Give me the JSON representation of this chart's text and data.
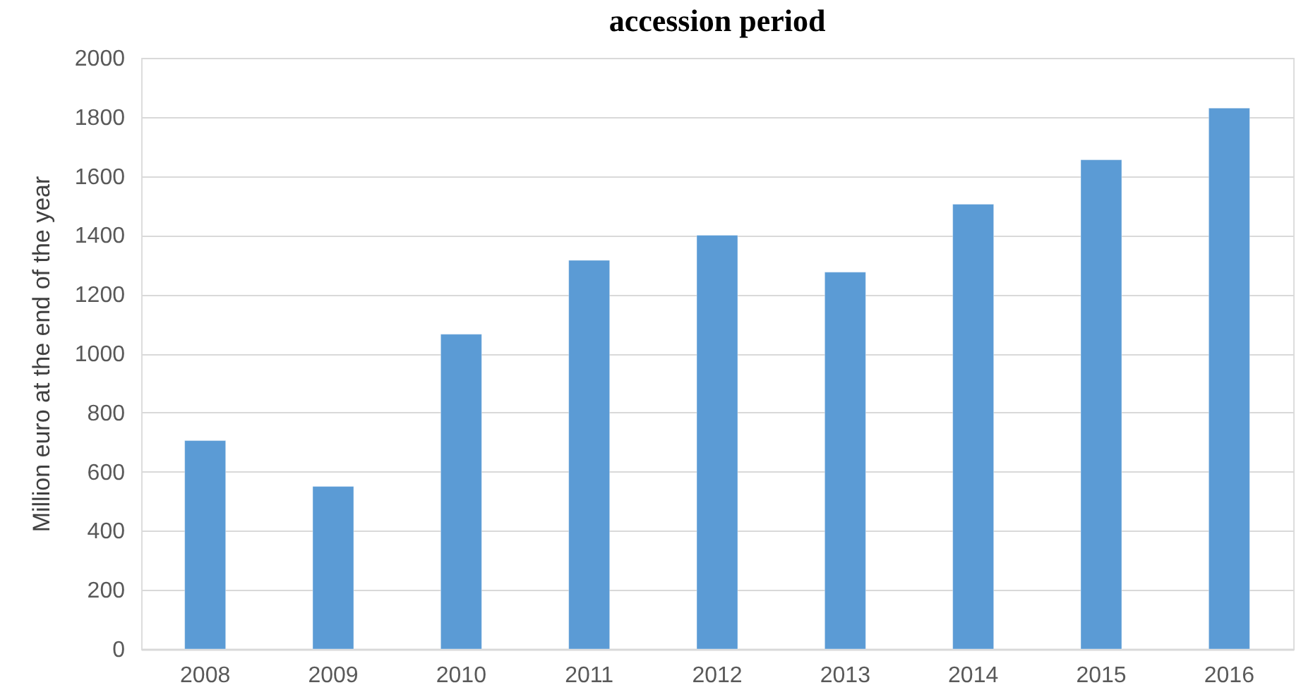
{
  "chart_data": {
    "type": "bar",
    "title": "accession period",
    "ylabel": "Million euro at the end of the year",
    "categories": [
      "2008",
      "2009",
      "2010",
      "2011",
      "2012",
      "2013",
      "2014",
      "2015",
      "2016"
    ],
    "values": [
      705,
      550,
      1065,
      1315,
      1400,
      1275,
      1505,
      1655,
      1830
    ],
    "color": "#5b9bd5",
    "ylim": [
      0,
      2000
    ],
    "yticks": [
      0,
      200,
      400,
      600,
      800,
      1000,
      1200,
      1400,
      1600,
      1800,
      2000
    ],
    "grid": "y"
  }
}
